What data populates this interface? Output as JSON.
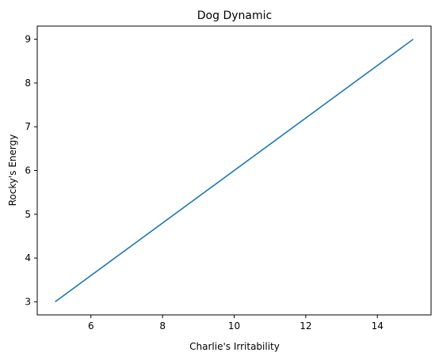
{
  "chart_data": {
    "type": "line",
    "title": "Dog Dynamic",
    "xlabel": "Charlie's Irritability",
    "ylabel": "Rocky's Energy",
    "xlim": [
      4.5,
      15.5
    ],
    "ylim": [
      2.7,
      9.3
    ],
    "xticks": [
      6,
      8,
      10,
      12,
      14
    ],
    "yticks": [
      3,
      4,
      5,
      6,
      7,
      8,
      9
    ],
    "grid": false,
    "series": [
      {
        "color": "#1f77b4",
        "x": [
          5,
          15
        ],
        "y": [
          3,
          9
        ]
      }
    ]
  }
}
